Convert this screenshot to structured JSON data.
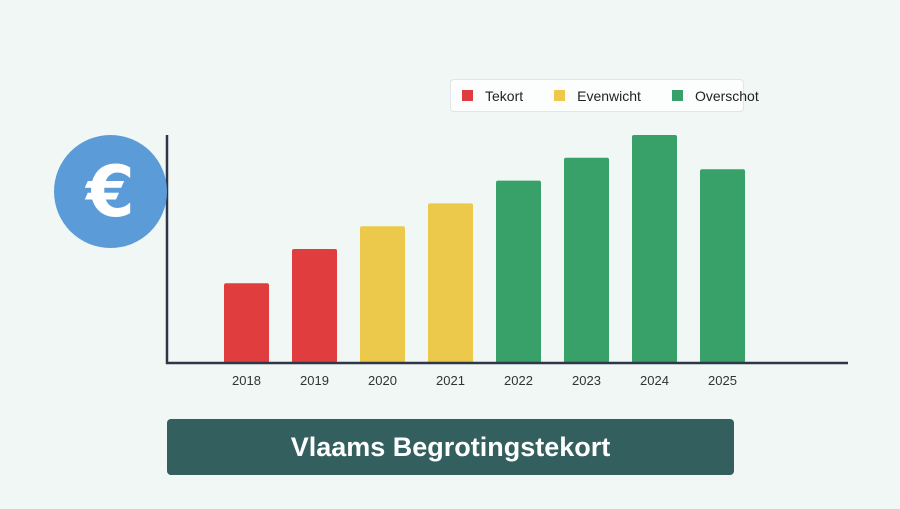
{
  "chart_data": {
    "type": "bar",
    "categories": [
      "2018",
      "2019",
      "2020",
      "2021",
      "2022",
      "2023",
      "2024",
      "2025"
    ],
    "values": [
      35,
      50,
      60,
      70,
      80,
      90,
      100,
      85
    ],
    "status": [
      "Tekort",
      "Tekort",
      "Evenwicht",
      "Evenwicht",
      "Overschot",
      "Overschot",
      "Overschot",
      "Overschot"
    ],
    "title": "Vlaams Begrotingstekort",
    "xlabel": "",
    "ylabel": "",
    "ylim": [
      0,
      100
    ],
    "grid": false,
    "legend_position": "top-right",
    "legend": [
      {
        "label": "Tekort",
        "color": "#e03e3e"
      },
      {
        "label": "Evenwicht",
        "color": "#ecc94b"
      },
      {
        "label": "Overschot",
        "color": "#38a169"
      }
    ]
  },
  "icon": {
    "name": "euro-icon",
    "glyph": "€",
    "color": "#5b9bd8"
  },
  "colors": {
    "background": "#f0f7f4",
    "axis": "#2d3748",
    "title_bar": "#335f5e"
  }
}
